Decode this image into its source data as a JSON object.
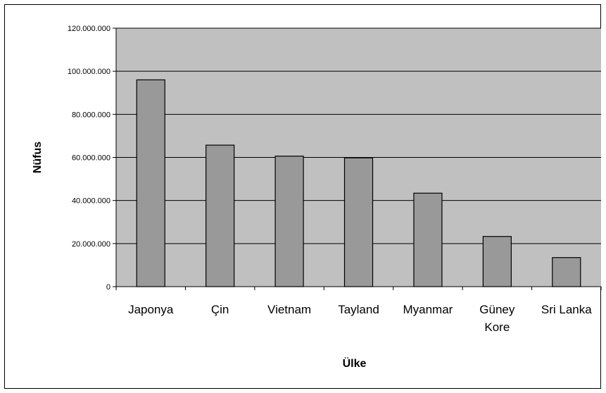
{
  "chart_data": {
    "type": "bar",
    "title": "",
    "xlabel": "Ülke",
    "ylabel": "Nüfus",
    "categories": [
      [
        "Japonya"
      ],
      [
        "Çin"
      ],
      [
        "Vietnam"
      ],
      [
        "Tayland"
      ],
      [
        "Myanmar"
      ],
      [
        "Güney",
        "Kore"
      ],
      [
        "Sri Lanka"
      ]
    ],
    "values": [
      96000000,
      65700000,
      60600000,
      59800000,
      43400000,
      23300000,
      13500000
    ],
    "ylim": [
      0,
      120000000
    ],
    "yticks": [
      0,
      20000000,
      40000000,
      60000000,
      80000000,
      100000000,
      120000000
    ],
    "ytick_labels": [
      "0",
      "20.000.000",
      "40.000.000",
      "60.000.000",
      "80.000.000",
      "100.000.000",
      "120.000.000"
    ],
    "grid": true,
    "legend": false,
    "colors": {
      "plot_bg": "#c0c0c0",
      "bar_fill": "#999999",
      "bar_stroke": "#000000",
      "grid": "#000000"
    }
  }
}
